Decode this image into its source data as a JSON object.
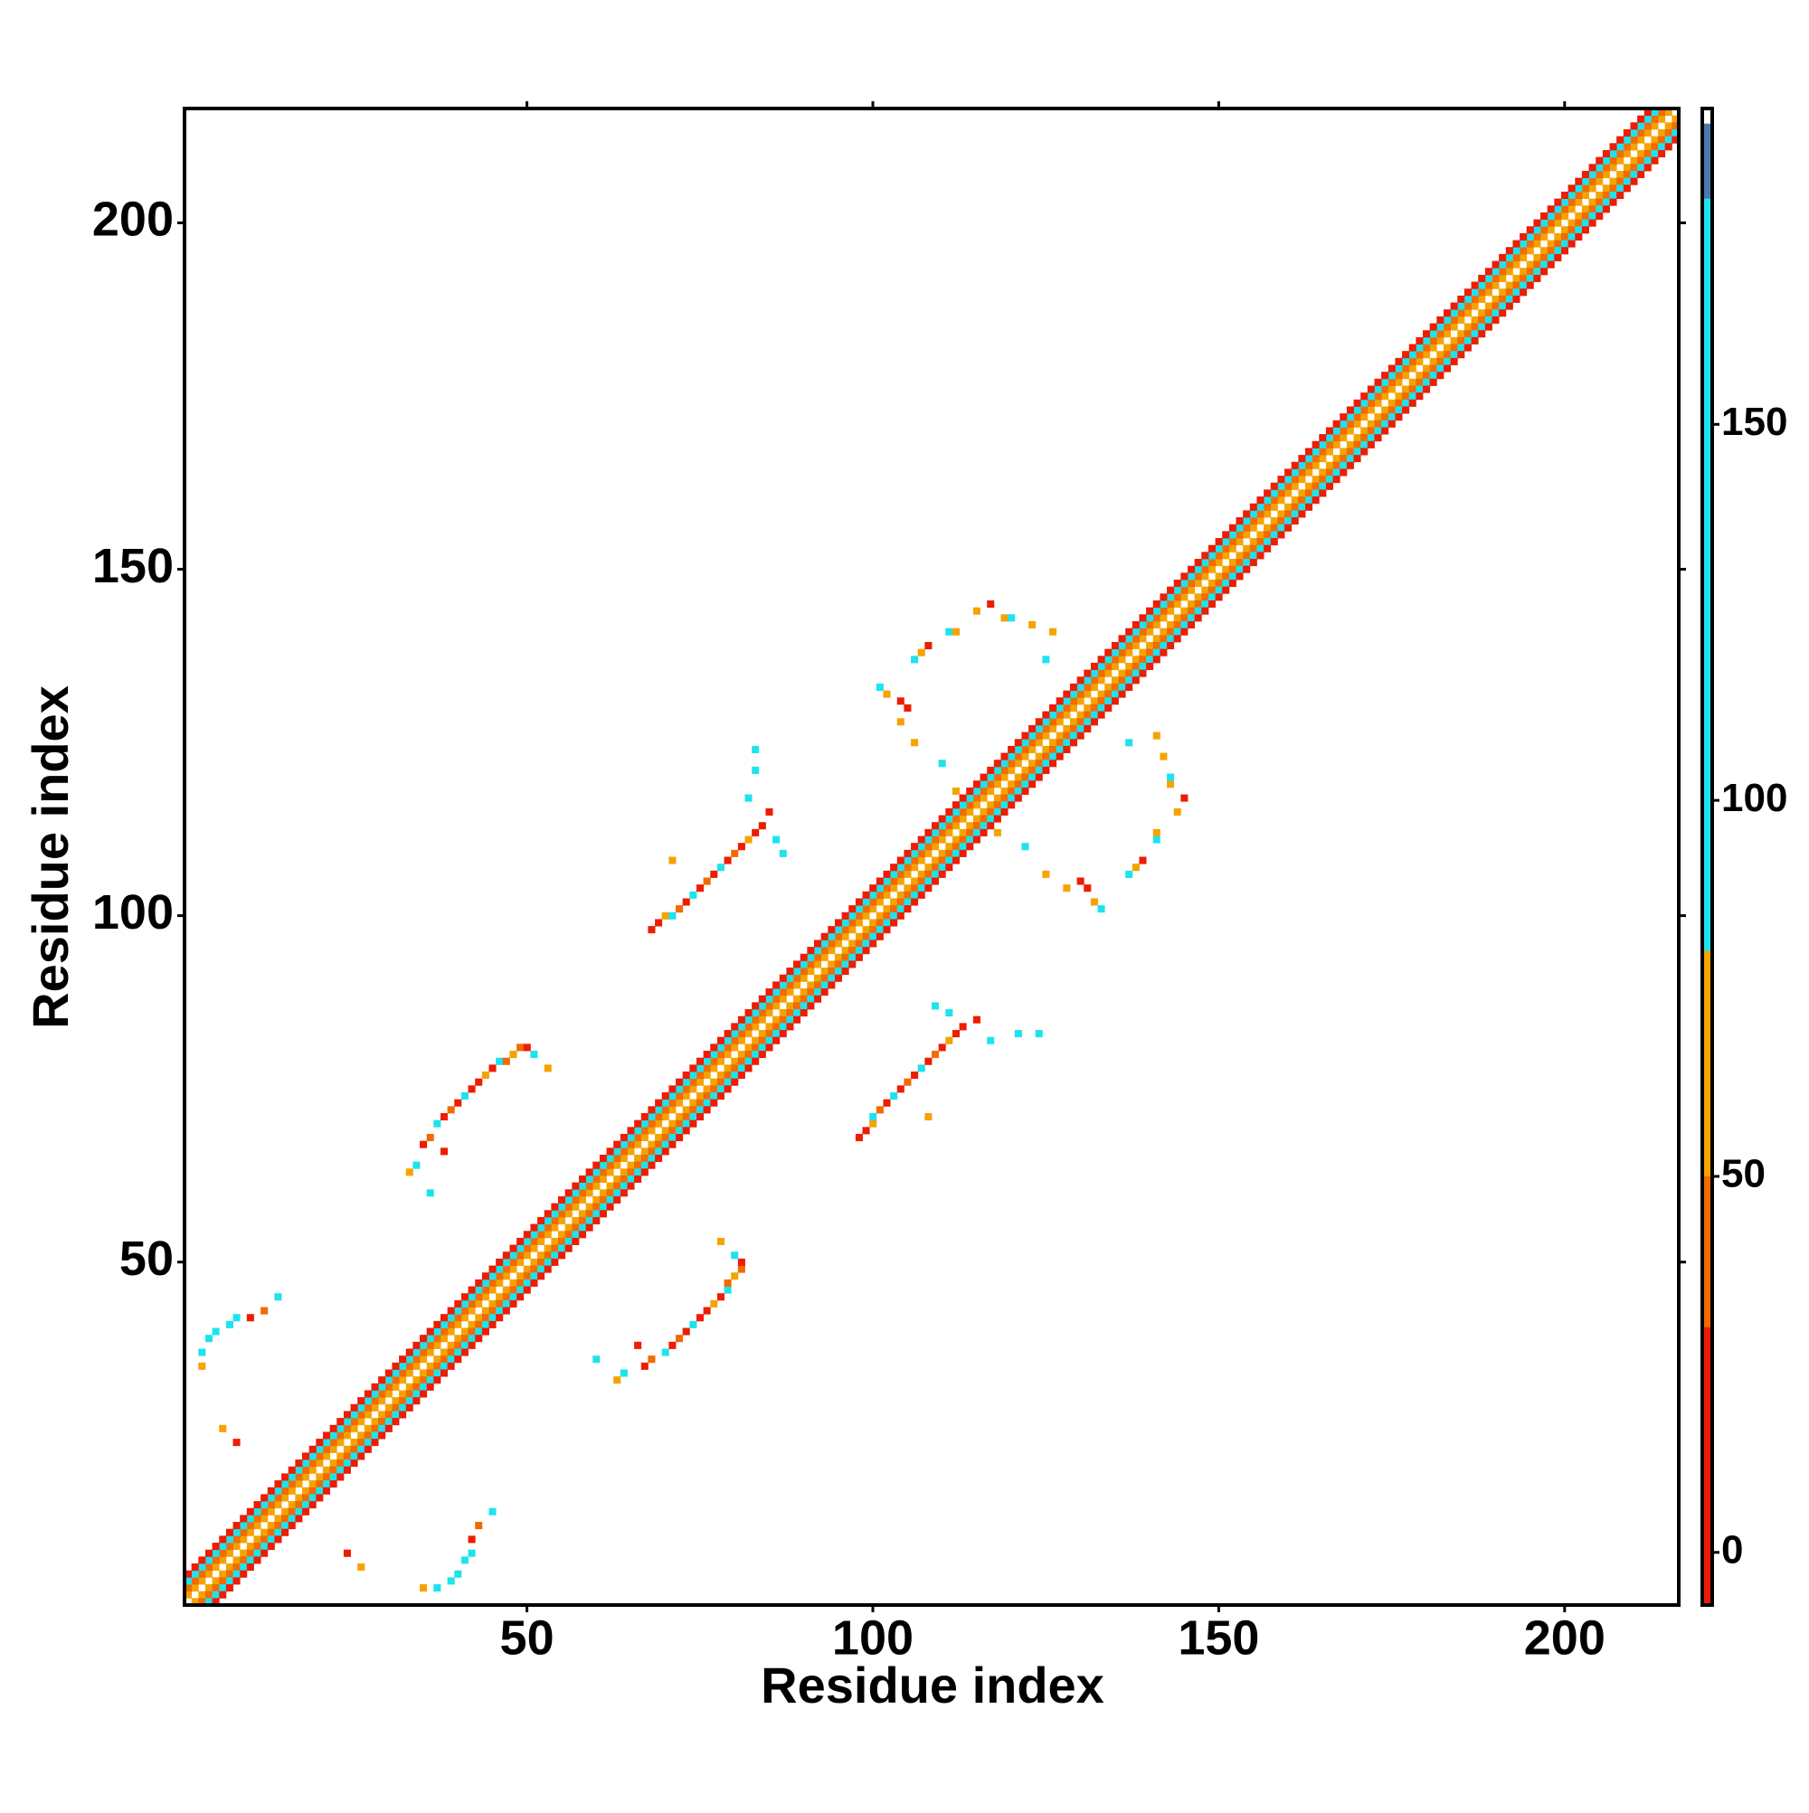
{
  "chart_data": {
    "type": "heatmap",
    "xlabel": "Residue index",
    "ylabel": "Residue index",
    "xlim": [
      0.5,
      216.5
    ],
    "ylim": [
      0.5,
      216.5
    ],
    "xticks": [
      50,
      100,
      150,
      200
    ],
    "yticks": [
      50,
      100,
      150,
      200
    ],
    "clim": [
      -7,
      192
    ],
    "cticks": [
      0,
      50,
      100,
      150
    ],
    "colorscale": [
      {
        "from": -7,
        "to": 30,
        "color": "#ee1c00"
      },
      {
        "from": 30,
        "to": 50,
        "color": "#f26a00"
      },
      {
        "from": 50,
        "to": 80,
        "color": "#f5a300"
      },
      {
        "from": 80,
        "to": 180,
        "color": "#1ee3ee"
      },
      {
        "from": 180,
        "to": 190,
        "color": "#4a7ab0"
      },
      {
        "from": 190,
        "to": 192,
        "color": "#ffffff"
      }
    ],
    "symmetric": true,
    "diagonal": {
      "offsets": [
        0,
        1,
        2,
        3,
        4
      ],
      "values": [
        191,
        60,
        40,
        120,
        20
      ]
    },
    "cells": [
      [
        35,
        67,
        20
      ],
      [
        36,
        68,
        40
      ],
      [
        37,
        70,
        120
      ],
      [
        38,
        71,
        20
      ],
      [
        39,
        72,
        40
      ],
      [
        40,
        73,
        20
      ],
      [
        41,
        74,
        120
      ],
      [
        42,
        75,
        20
      ],
      [
        43,
        76,
        20
      ],
      [
        44,
        77,
        60
      ],
      [
        45,
        78,
        20
      ],
      [
        46,
        79,
        120
      ],
      [
        47,
        79,
        40
      ],
      [
        48,
        80,
        60
      ],
      [
        49,
        81,
        40
      ],
      [
        50,
        81,
        20
      ],
      [
        51,
        80,
        120
      ],
      [
        53,
        78,
        60
      ],
      [
        33,
        63,
        60
      ],
      [
        34,
        64,
        120
      ],
      [
        36,
        60,
        120
      ],
      [
        38,
        66,
        20
      ],
      [
        68,
        98,
        20
      ],
      [
        69,
        99,
        20
      ],
      [
        70,
        100,
        60
      ],
      [
        71,
        100,
        120
      ],
      [
        72,
        101,
        40
      ],
      [
        73,
        102,
        20
      ],
      [
        74,
        103,
        120
      ],
      [
        75,
        104,
        20
      ],
      [
        76,
        105,
        40
      ],
      [
        77,
        106,
        20
      ],
      [
        78,
        107,
        120
      ],
      [
        79,
        108,
        20
      ],
      [
        80,
        109,
        40
      ],
      [
        81,
        110,
        20
      ],
      [
        82,
        111,
        60
      ],
      [
        83,
        112,
        20
      ],
      [
        84,
        113,
        20
      ],
      [
        85,
        115,
        20
      ],
      [
        86,
        111,
        120
      ],
      [
        87,
        109,
        120
      ],
      [
        83,
        121,
        120
      ],
      [
        71,
        108,
        60
      ],
      [
        82,
        117,
        120
      ],
      [
        83,
        124,
        120
      ],
      [
        101,
        133,
        120
      ],
      [
        102,
        132,
        60
      ],
      [
        104,
        131,
        20
      ],
      [
        105,
        130,
        20
      ],
      [
        104,
        128,
        60
      ],
      [
        106,
        137,
        120
      ],
      [
        107,
        138,
        60
      ],
      [
        108,
        139,
        20
      ],
      [
        111,
        141,
        120
      ],
      [
        112,
        141,
        60
      ],
      [
        115,
        144,
        60
      ],
      [
        117,
        145,
        20
      ],
      [
        119,
        143,
        60
      ],
      [
        120,
        143,
        120
      ],
      [
        123,
        142,
        60
      ],
      [
        126,
        141,
        60
      ],
      [
        125,
        137,
        120
      ],
      [
        106,
        125,
        60
      ],
      [
        110,
        122,
        120
      ],
      [
        112,
        118,
        60
      ],
      [
        3,
        35,
        60
      ],
      [
        3,
        37,
        120
      ],
      [
        4,
        39,
        120
      ],
      [
        5,
        40,
        120
      ],
      [
        7,
        41,
        120
      ],
      [
        8,
        42,
        120
      ],
      [
        10,
        42,
        20
      ],
      [
        12,
        43,
        40
      ],
      [
        14,
        45,
        120
      ],
      [
        6,
        26,
        60
      ],
      [
        8,
        24,
        20
      ]
    ]
  }
}
